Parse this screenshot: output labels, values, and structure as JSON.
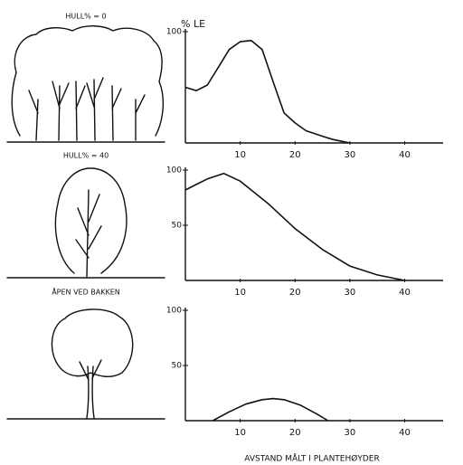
{
  "chart_data": [
    {
      "type": "line",
      "title": "HULL% = 0",
      "ylabel": "% LE",
      "x": [
        0,
        2,
        4,
        6,
        8,
        10,
        12,
        14,
        16,
        18,
        20,
        22,
        25,
        27,
        30
      ],
      "values": [
        50,
        47,
        52,
        68,
        84,
        91,
        92,
        84,
        55,
        27,
        18,
        11,
        6,
        3,
        0
      ],
      "xlim": [
        0,
        47
      ],
      "ylim": [
        0,
        100
      ],
      "xticks": [
        10,
        20,
        30,
        40
      ],
      "yticks": [
        100
      ],
      "color": "#111111"
    },
    {
      "type": "line",
      "title": "HULL% = 40",
      "x": [
        0,
        2,
        4,
        7,
        10,
        15,
        20,
        25,
        30,
        35,
        40
      ],
      "values": [
        82,
        87,
        92,
        97,
        90,
        70,
        47,
        28,
        13,
        5,
        0
      ],
      "xlim": [
        0,
        47
      ],
      "ylim": [
        0,
        100
      ],
      "xticks": [
        10,
        20,
        30,
        40
      ],
      "yticks": [
        50,
        100
      ],
      "color": "#111111"
    },
    {
      "type": "line",
      "title": "ÅPEN VED BAKKEN",
      "xlabel": "AVSTAND MÅLT I PLANTEHØYDER",
      "x": [
        5,
        8,
        11,
        14,
        16,
        18,
        21,
        24,
        26
      ],
      "values": [
        0,
        8,
        15,
        19,
        20,
        19,
        14,
        6,
        0
      ],
      "xlim": [
        0,
        47
      ],
      "ylim": [
        0,
        100
      ],
      "xticks": [
        10,
        20,
        30,
        40
      ],
      "yticks": [
        50,
        100
      ],
      "color": "#111111"
    }
  ]
}
